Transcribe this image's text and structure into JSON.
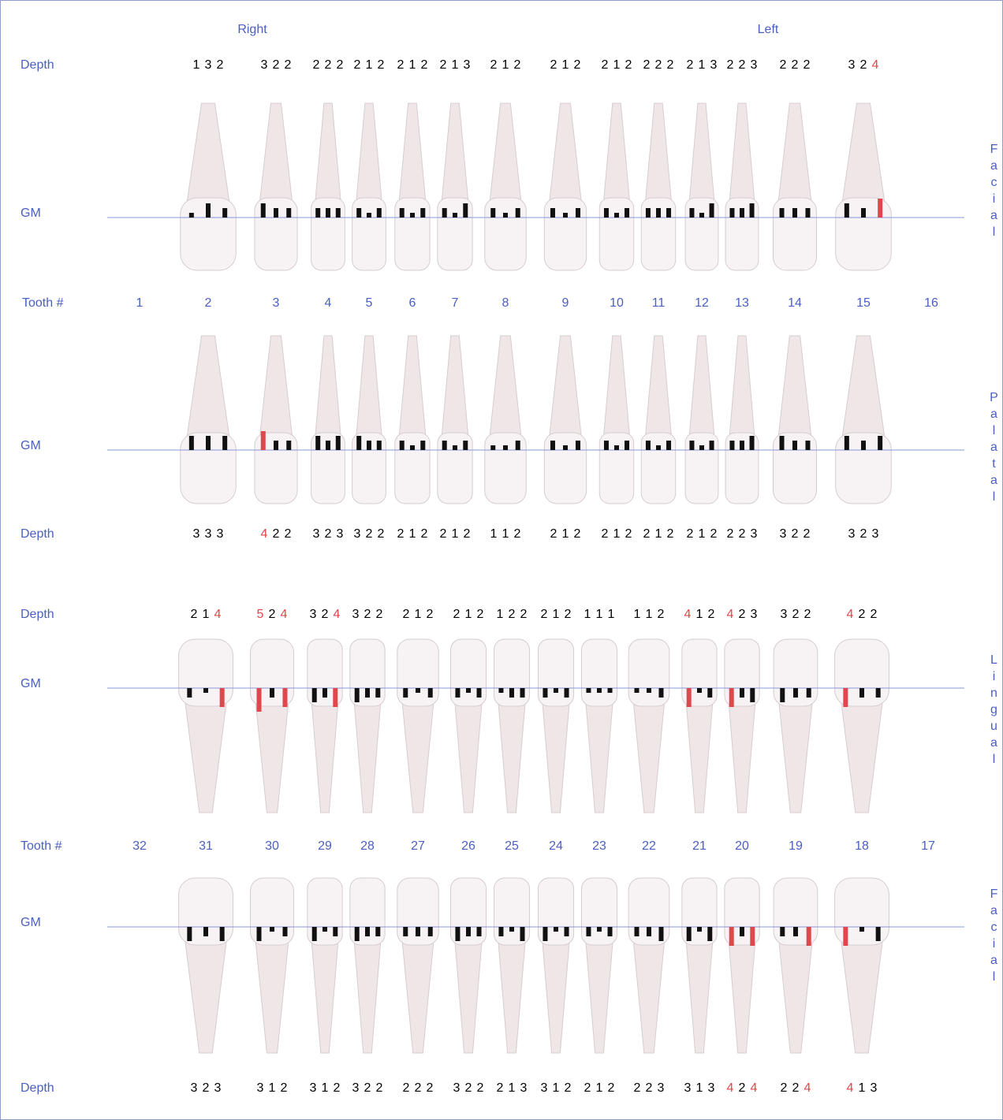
{
  "header": {
    "right": "Right",
    "left": "Left"
  },
  "upper": {
    "tooth_label": "Tooth #",
    "teeth": [
      1,
      2,
      3,
      4,
      5,
      6,
      7,
      8,
      9,
      10,
      11,
      12,
      13,
      14,
      15,
      16
    ],
    "facial": {
      "side": "Facial",
      "depth_label": "Depth",
      "gm_label": "GM",
      "depths": [
        null,
        [
          1,
          3,
          2
        ],
        [
          3,
          2,
          2
        ],
        [
          2,
          2,
          2
        ],
        [
          2,
          1,
          2
        ],
        [
          2,
          1,
          2
        ],
        [
          2,
          1,
          3
        ],
        [
          2,
          1,
          2
        ],
        [
          2,
          1,
          2
        ],
        [
          2,
          1,
          2
        ],
        [
          2,
          2,
          2
        ],
        [
          2,
          1,
          3
        ],
        [
          2,
          2,
          3
        ],
        [
          2,
          2,
          2
        ],
        [
          3,
          2,
          {
            "value": 4,
            "color": "#e0474c"
          }
        ],
        null
      ]
    },
    "palatal": {
      "side": "Palatal",
      "depth_label": "Depth",
      "gm_label": "GM",
      "depths": [
        null,
        [
          3,
          3,
          3
        ],
        [
          {
            "value": 4,
            "color": "#e0474c"
          },
          2,
          2
        ],
        [
          3,
          2,
          3
        ],
        [
          3,
          2,
          2
        ],
        [
          2,
          1,
          2
        ],
        [
          2,
          1,
          2
        ],
        [
          1,
          1,
          2
        ],
        [
          2,
          1,
          2
        ],
        [
          2,
          1,
          2
        ],
        [
          2,
          1,
          2
        ],
        [
          2,
          1,
          2
        ],
        [
          2,
          2,
          3
        ],
        [
          3,
          2,
          2
        ],
        [
          3,
          2,
          3
        ],
        null
      ]
    }
  },
  "lower": {
    "tooth_label": "Tooth #",
    "teeth": [
      32,
      31,
      30,
      29,
      28,
      27,
      26,
      25,
      24,
      23,
      22,
      21,
      20,
      19,
      18,
      17
    ],
    "lingual": {
      "side": "Lingual",
      "depth_label": "Depth",
      "gm_label": "GM",
      "depths": [
        null,
        [
          2,
          1,
          {
            "value": 4,
            "color": "#e0474c"
          }
        ],
        [
          {
            "value": 5,
            "color": "#e0474c"
          },
          2,
          {
            "value": 4,
            "color": "#e0474c"
          }
        ],
        [
          3,
          2,
          {
            "value": 4,
            "color": "#e0474c"
          }
        ],
        [
          3,
          2,
          2
        ],
        [
          2,
          1,
          2
        ],
        [
          2,
          1,
          2
        ],
        [
          1,
          2,
          2
        ],
        [
          2,
          1,
          2
        ],
        [
          1,
          1,
          1
        ],
        [
          1,
          1,
          2
        ],
        [
          {
            "value": 4,
            "color": "#e0474c"
          },
          1,
          2
        ],
        [
          {
            "value": 4,
            "color": "#e0474c"
          },
          2,
          3
        ],
        [
          3,
          2,
          2
        ],
        [
          {
            "value": 4,
            "color": "#e0474c"
          },
          2,
          2
        ],
        null
      ]
    },
    "facial": {
      "side": "Facial",
      "depth_label": "Depth",
      "gm_label": "GM",
      "depths": [
        null,
        [
          3,
          2,
          3
        ],
        [
          3,
          1,
          2
        ],
        [
          3,
          1,
          2
        ],
        [
          3,
          2,
          2
        ],
        [
          2,
          2,
          2
        ],
        [
          3,
          2,
          2
        ],
        [
          2,
          1,
          3
        ],
        [
          3,
          1,
          2
        ],
        [
          2,
          1,
          2
        ],
        [
          2,
          2,
          3
        ],
        [
          3,
          1,
          3
        ],
        [
          {
            "value": 4,
            "color": "#e0474c"
          },
          2,
          {
            "value": 4,
            "color": "#e0474c"
          }
        ],
        [
          2,
          2,
          {
            "value": 4,
            "color": "#e0474c"
          }
        ],
        [
          {
            "value": 4,
            "color": "#e0474c"
          },
          1,
          3
        ],
        null
      ]
    }
  }
}
